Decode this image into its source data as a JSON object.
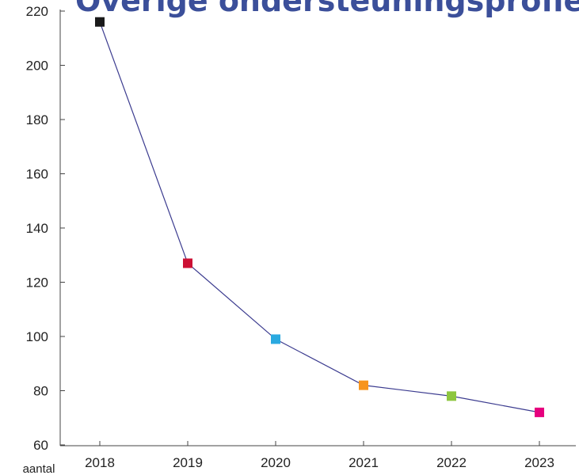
{
  "chart_data": {
    "type": "line",
    "title": "Overige ondersteuningsprofielen",
    "xlabel": "",
    "ylabel": "aantal",
    "categories": [
      "2018",
      "2019",
      "2020",
      "2021",
      "2022",
      "2023"
    ],
    "series": [
      {
        "values": [
          216,
          127,
          99,
          82,
          78,
          72
        ],
        "line_color": "#3b3b8f",
        "marker_colors": [
          "#1a1a1a",
          "#cc1034",
          "#2aa9e0",
          "#f7941d",
          "#8dc63f",
          "#e6007e"
        ]
      }
    ],
    "ylim": [
      60,
      220
    ],
    "yticks": [
      60,
      80,
      100,
      120,
      140,
      160,
      180,
      200,
      220
    ],
    "grid": false,
    "legend": "none"
  }
}
